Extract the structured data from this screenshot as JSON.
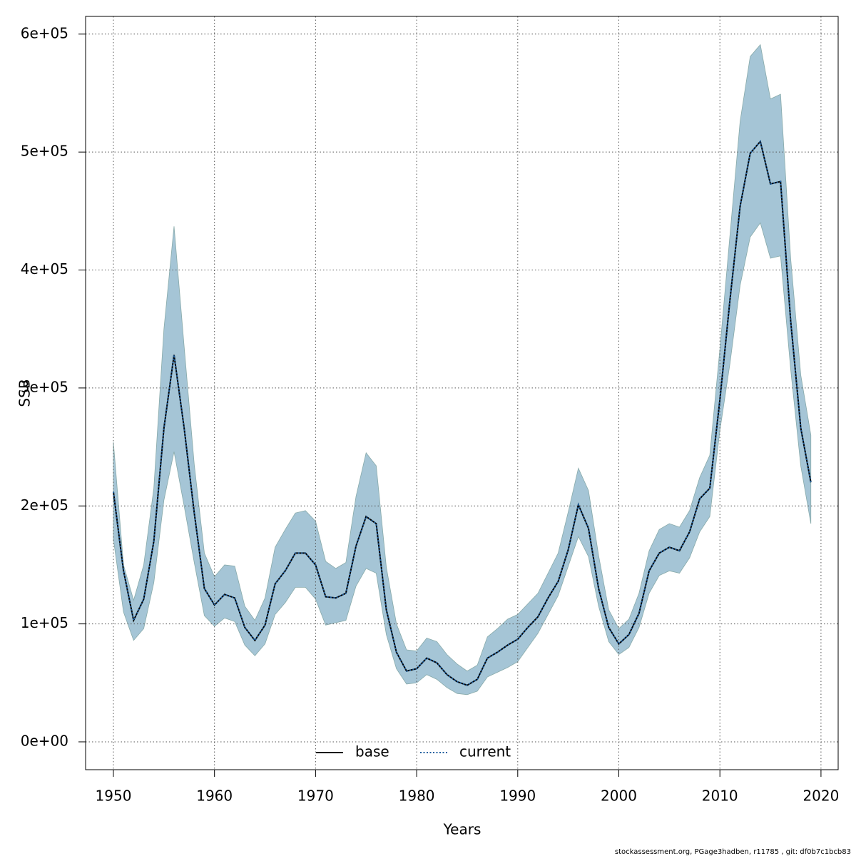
{
  "chart_data": {
    "type": "line",
    "x_label": "Years",
    "y_label": "SSB",
    "footer": "stockassessment.org, PGage3hadben, r11785 , git: df0b7c1bcb83",
    "x": [
      1950,
      1951,
      1952,
      1953,
      1954,
      1955,
      1956,
      1957,
      1958,
      1959,
      1960,
      1961,
      1962,
      1963,
      1964,
      1965,
      1966,
      1967,
      1968,
      1969,
      1970,
      1971,
      1972,
      1973,
      1974,
      1975,
      1976,
      1977,
      1978,
      1979,
      1980,
      1981,
      1982,
      1983,
      1984,
      1985,
      1986,
      1987,
      1988,
      1989,
      1990,
      1991,
      1992,
      1993,
      1994,
      1995,
      1996,
      1997,
      1998,
      1999,
      2000,
      2001,
      2002,
      2003,
      2004,
      2005,
      2006,
      2007,
      2008,
      2009,
      2010,
      2011,
      2012,
      2013,
      2014,
      2015,
      2016,
      2017,
      2018,
      2019
    ],
    "ci": {
      "color": "#a5c5d6",
      "upper": [
        254000,
        150000,
        120000,
        150000,
        215000,
        350000,
        437000,
        335000,
        235000,
        160000,
        140000,
        150000,
        149000,
        115000,
        103000,
        122000,
        165000,
        180000,
        194000,
        196000,
        187000,
        153000,
        147000,
        152000,
        208000,
        245000,
        234000,
        148000,
        100000,
        78000,
        77000,
        88000,
        85000,
        74000,
        66000,
        60000,
        65000,
        89000,
        96000,
        104000,
        108000,
        117000,
        126000,
        143000,
        160000,
        195000,
        232000,
        213000,
        158000,
        112000,
        96000,
        104000,
        126000,
        162000,
        180000,
        185000,
        182000,
        196000,
        224000,
        243000,
        333000,
        430000,
        526000,
        581000,
        591000,
        545000,
        549000,
        410000,
        311000,
        260000
      ],
      "lower": [
        172000,
        110000,
        86000,
        96000,
        135000,
        205000,
        246000,
        200000,
        152000,
        107000,
        98000,
        105000,
        102000,
        82000,
        73000,
        83000,
        108000,
        118000,
        131000,
        131000,
        121000,
        99000,
        101000,
        103000,
        132000,
        147000,
        143000,
        91000,
        62000,
        49000,
        50000,
        57000,
        53000,
        46000,
        41000,
        40000,
        43000,
        55000,
        59000,
        63000,
        68000,
        80000,
        92000,
        108000,
        124000,
        149000,
        174000,
        157000,
        115000,
        85000,
        74000,
        80000,
        97000,
        126000,
        141000,
        145000,
        143000,
        156000,
        178000,
        191000,
        264000,
        321000,
        387000,
        428000,
        440000,
        410000,
        412000,
        316000,
        234000,
        185000
      ]
    },
    "series": [
      {
        "name": "base",
        "color": "#000000",
        "dash": "none",
        "values": [
          212000,
          145000,
          103000,
          121000,
          170000,
          266000,
          328000,
          266000,
          194000,
          130000,
          116000,
          125000,
          122000,
          97000,
          86000,
          99000,
          134000,
          145000,
          160000,
          160000,
          150000,
          123000,
          122000,
          126000,
          166000,
          191000,
          185000,
          112000,
          76000,
          60000,
          62000,
          71000,
          67000,
          57000,
          51000,
          48000,
          53000,
          71000,
          76000,
          82000,
          87000,
          97000,
          106000,
          122000,
          136000,
          163000,
          201000,
          181000,
          130000,
          97000,
          83000,
          91000,
          109000,
          145000,
          160000,
          165000,
          162000,
          178000,
          206000,
          215000,
          290000,
          375000,
          454000,
          499000,
          509000,
          473000,
          475000,
          357000,
          266000,
          220000
        ]
      },
      {
        "name": "current",
        "color": "#1f5f9f",
        "dash": "2 2.5",
        "values": [
          212000,
          145000,
          103000,
          121000,
          170000,
          266000,
          328000,
          266000,
          194000,
          130000,
          116000,
          125000,
          122000,
          97000,
          86000,
          99000,
          134000,
          145000,
          160000,
          160000,
          150000,
          123000,
          122000,
          126000,
          166000,
          191000,
          185000,
          112000,
          76000,
          60000,
          62000,
          71000,
          67000,
          57000,
          51000,
          48000,
          53000,
          71000,
          76000,
          82000,
          87000,
          97000,
          106000,
          122000,
          136000,
          163000,
          201000,
          181000,
          130000,
          97000,
          83000,
          91000,
          109000,
          145000,
          160000,
          165000,
          162000,
          178000,
          206000,
          215000,
          290000,
          375000,
          454000,
          499000,
          509000,
          473000,
          475000,
          357000,
          266000,
          220000
        ]
      }
    ],
    "xlim": [
      1947.25,
      2021.7
    ],
    "ylim": [
      -23600,
      615000
    ],
    "xticks": [
      1950,
      1960,
      1970,
      1980,
      1990,
      2000,
      2010,
      2020
    ],
    "yticks": [
      {
        "value": 0,
        "label": "0e+00"
      },
      {
        "value": 100000,
        "label": "1e+05"
      },
      {
        "value": 200000,
        "label": "2e+05"
      },
      {
        "value": 300000,
        "label": "3e+05"
      },
      {
        "value": 400000,
        "label": "4e+05"
      },
      {
        "value": 500000,
        "label": "5e+05"
      },
      {
        "value": 600000,
        "label": "6e+05"
      }
    ],
    "grid": true,
    "legend": "bottom"
  }
}
